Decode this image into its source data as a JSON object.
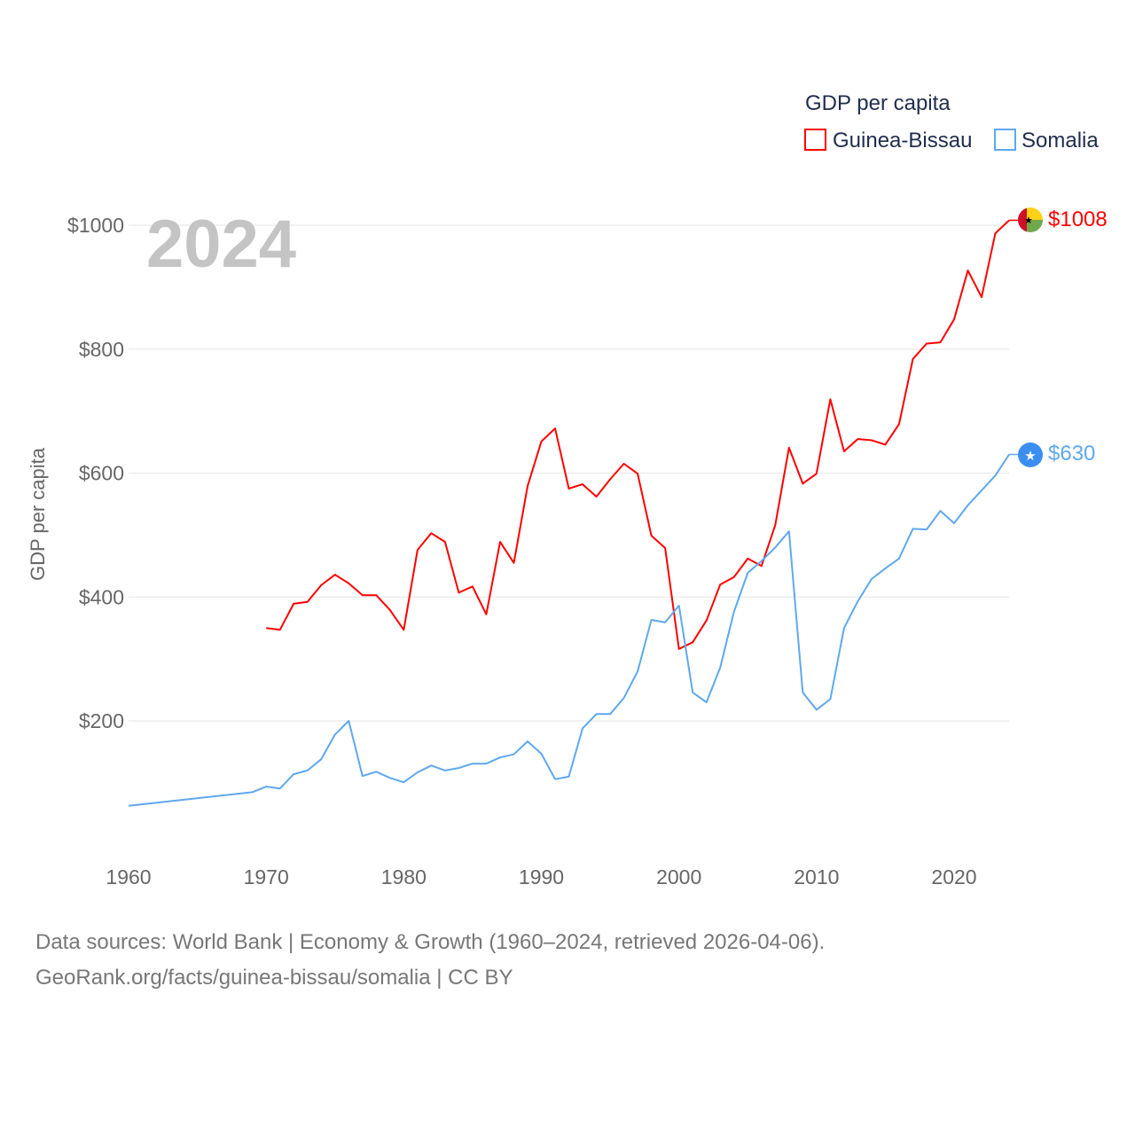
{
  "chart_data": {
    "type": "line",
    "title": "GDP per capita",
    "ylabel": "GDP per capita",
    "xlabel": "",
    "year_label": "2024",
    "ylim": [
      0,
      1100
    ],
    "xlim": [
      1960,
      2024
    ],
    "yticks": [
      200,
      400,
      600,
      800,
      1000
    ],
    "ytick_labels": [
      "$200",
      "$400",
      "$600",
      "$800",
      "$1000"
    ],
    "xticks": [
      1960,
      1970,
      1980,
      1990,
      2000,
      2010,
      2020
    ],
    "xtick_labels": [
      "1960",
      "1970",
      "1980",
      "1990",
      "2000",
      "2010",
      "2020"
    ],
    "grid": true,
    "legend_position": "top-right",
    "series": [
      {
        "name": "Guinea-Bissau",
        "color": "#ff0000",
        "end_label": "$1008",
        "x": [
          1970,
          1971,
          1972,
          1973,
          1974,
          1975,
          1976,
          1977,
          1978,
          1979,
          1980,
          1981,
          1982,
          1983,
          1984,
          1985,
          1986,
          1987,
          1988,
          1989,
          1990,
          1991,
          1992,
          1993,
          1994,
          1995,
          1996,
          1997,
          1998,
          1999,
          2000,
          2001,
          2002,
          2003,
          2004,
          2005,
          2006,
          2007,
          2008,
          2009,
          2010,
          2011,
          2012,
          2013,
          2014,
          2015,
          2016,
          2017,
          2018,
          2019,
          2020,
          2021,
          2022,
          2023,
          2024
        ],
        "values": [
          350,
          347,
          389,
          392,
          419,
          436,
          422,
          403,
          403,
          379,
          347,
          476,
          503,
          489,
          407,
          417,
          372,
          489,
          455,
          579,
          651,
          672,
          575,
          582,
          562,
          590,
          615,
          599,
          499,
          479,
          316,
          327,
          362,
          420,
          432,
          462,
          450,
          516,
          641,
          583,
          599,
          719,
          635,
          655,
          653,
          646,
          679,
          784,
          809,
          811,
          848,
          927,
          884,
          987,
          1008
        ]
      },
      {
        "name": "Somalia",
        "color": "#5ea8ef",
        "end_label": "$630",
        "x": [
          1960,
          1969,
          1970,
          1971,
          1972,
          1973,
          1974,
          1975,
          1976,
          1977,
          1978,
          1979,
          1980,
          1981,
          1982,
          1983,
          1984,
          1985,
          1986,
          1987,
          1988,
          1989,
          1990,
          1991,
          1992,
          1993,
          1994,
          1995,
          1996,
          1997,
          1998,
          1999,
          2000,
          2001,
          2002,
          2003,
          2004,
          2005,
          2006,
          2007,
          2008,
          2009,
          2010,
          2011,
          2012,
          2013,
          2014,
          2015,
          2016,
          2017,
          2018,
          2019,
          2020,
          2021,
          2022,
          2023,
          2024
        ],
        "values": [
          63,
          85,
          94,
          91,
          114,
          120,
          138,
          178,
          200,
          111,
          118,
          108,
          101,
          117,
          128,
          120,
          124,
          131,
          131,
          141,
          146,
          167,
          147,
          106,
          110,
          188,
          211,
          211,
          237,
          280,
          363,
          359,
          386,
          246,
          230,
          286,
          376,
          439,
          458,
          480,
          506,
          246,
          218,
          235,
          350,
          393,
          429,
          446,
          462,
          510,
          509,
          539,
          519,
          548,
          572,
          596,
          630
        ]
      }
    ]
  },
  "footer": {
    "line1": "Data sources: World Bank | Economy & Growth (1960–2024, retrieved 2026-04-06).",
    "line2": "GeoRank.org/facts/guinea-bissau/somalia | CC BY"
  }
}
